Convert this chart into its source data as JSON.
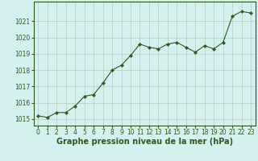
{
  "x": [
    0,
    1,
    2,
    3,
    4,
    5,
    6,
    7,
    8,
    9,
    10,
    11,
    12,
    13,
    14,
    15,
    16,
    17,
    18,
    19,
    20,
    21,
    22,
    23
  ],
  "y": [
    1015.2,
    1015.1,
    1015.4,
    1015.4,
    1015.8,
    1016.4,
    1016.5,
    1017.2,
    1018.0,
    1018.3,
    1018.9,
    1019.6,
    1019.4,
    1019.3,
    1019.6,
    1019.7,
    1019.4,
    1019.1,
    1019.5,
    1019.3,
    1019.7,
    1021.3,
    1021.6,
    1021.5
  ],
  "line_color": "#2d5a1b",
  "marker": "D",
  "marker_size": 2.2,
  "bg_color": "#d6f0ef",
  "grid_color": "#b8c8c0",
  "xlabel": "Graphe pression niveau de la mer (hPa)",
  "xlabel_fontsize": 7,
  "ylabel_ticks": [
    1015,
    1016,
    1017,
    1018,
    1019,
    1020,
    1021
  ],
  "ylim": [
    1014.6,
    1022.2
  ],
  "xlim": [
    -0.5,
    23.5
  ],
  "tick_color": "#2d5a1b",
  "tick_fontsize": 5.5,
  "border_color": "#2d5a1b"
}
